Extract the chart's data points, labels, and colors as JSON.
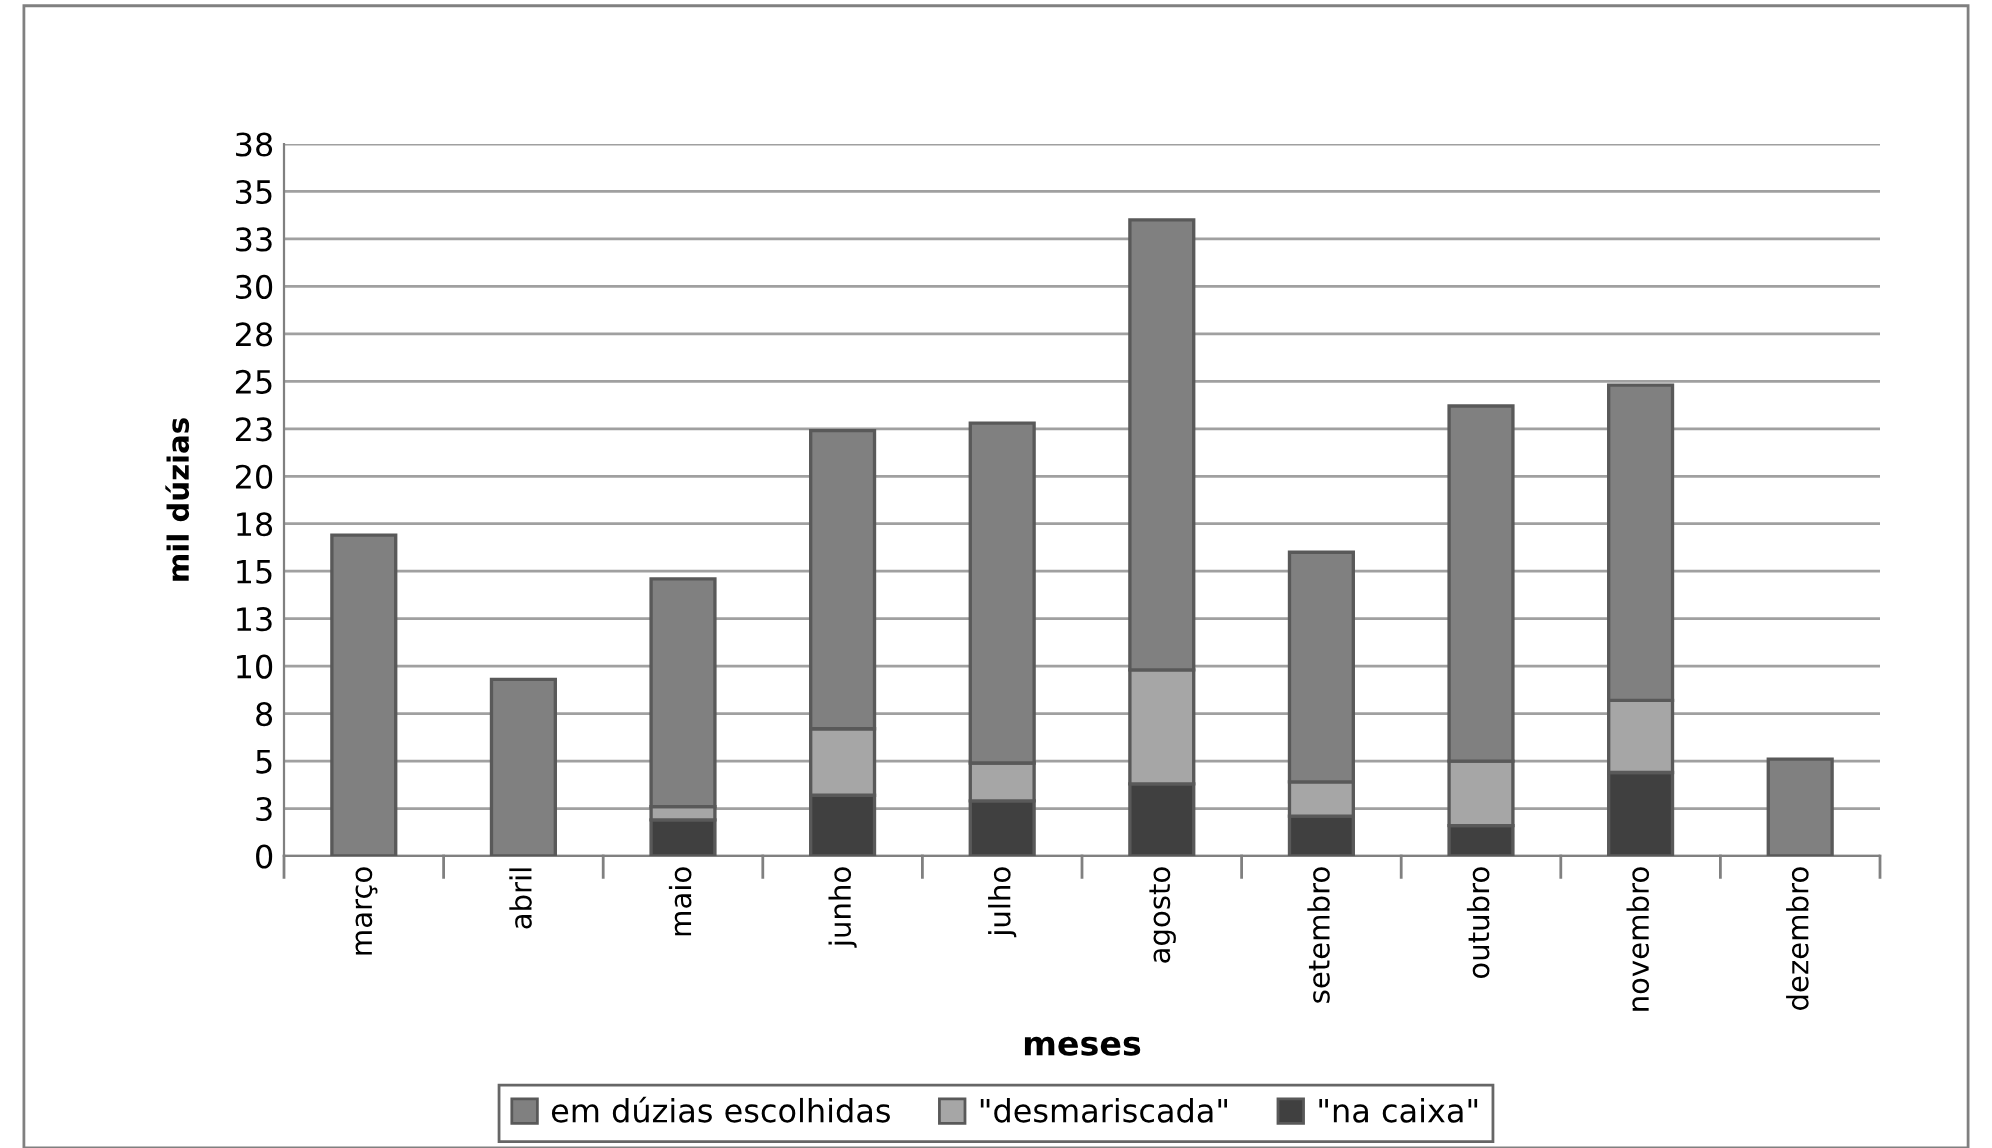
{
  "chart_data": {
    "type": "bar",
    "stacked": true,
    "xlabel": "meses",
    "ylabel": "mil dúzias",
    "categories": [
      "março",
      "abril",
      "maio",
      "junho",
      "julho",
      "agosto",
      "setembro",
      "outubro",
      "novembro",
      "dezembro"
    ],
    "series": [
      {
        "name": "\"na caixa\"",
        "color": "#404040",
        "values": [
          null,
          null,
          1.9,
          3.2,
          2.9,
          3.8,
          2.1,
          1.6,
          4.4,
          null
        ]
      },
      {
        "name": "\"desmariscada\"",
        "color": "#a6a6a6",
        "values": [
          null,
          null,
          0.7,
          3.5,
          2.0,
          6.0,
          1.8,
          3.4,
          3.8,
          null
        ]
      },
      {
        "name": "em dúzias escolhidas",
        "color": "#808080",
        "values": [
          16.9,
          9.3,
          12.0,
          15.7,
          17.9,
          23.7,
          12.1,
          18.7,
          16.6,
          5.1
        ]
      }
    ],
    "ylim": [
      0,
      37.5
    ],
    "yticks": [
      0,
      {
        "value": 2.5,
        "label": "3"
      },
      5,
      {
        "value": 7.5,
        "label": "8"
      },
      10,
      {
        "value": 12.5,
        "label": "13"
      },
      15,
      {
        "value": 17.5,
        "label": "18"
      },
      20,
      {
        "value": 22.5,
        "label": "23"
      },
      25,
      {
        "value": 27.5,
        "label": "28"
      },
      30,
      {
        "value": 32.5,
        "label": "33"
      },
      35,
      {
        "value": 37.5,
        "label": "38"
      }
    ],
    "grid": "y",
    "legend": "bottom"
  }
}
